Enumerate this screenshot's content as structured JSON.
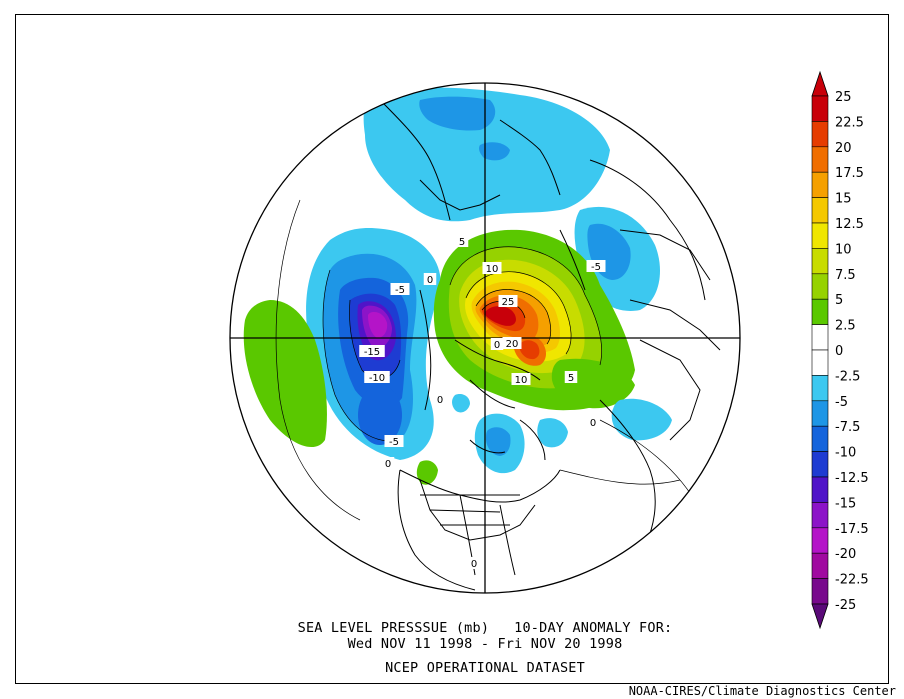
{
  "map": {
    "title_line1": "SEA LEVEL PRESSSUE (mb)   10-DAY ANOMALY FOR:",
    "title_line2": "Wed NOV 11 1998 - Fri NOV 20 1998",
    "title_line3": "NCEP OPERATIONAL DATASET",
    "credit": "NOAA-CIRES/Climate Diagnostics Center",
    "projection": "north polar stereographic",
    "contour_labels": [
      "5",
      "10",
      "25",
      "-5",
      "0",
      "-15",
      "20",
      "-10",
      "10",
      "5",
      "-5",
      "-5",
      "0",
      "0",
      "0",
      "0",
      "0"
    ]
  },
  "colorbar": {
    "levels": [
      "25",
      "22.5",
      "20",
      "17.5",
      "15",
      "12.5",
      "10",
      "7.5",
      "5",
      "2.5",
      "0",
      "-2.5",
      "-5",
      "-7.5",
      "-10",
      "-12.5",
      "-15",
      "-17.5",
      "-20",
      "-22.5",
      "-25"
    ],
    "colors": [
      "#c8000a",
      "#e63c00",
      "#f06e00",
      "#f5a000",
      "#f5c800",
      "#f0e600",
      "#c8dc00",
      "#96d200",
      "#5ac800",
      "#ffffff",
      "#ffffff",
      "#3cc8f0",
      "#1e96e6",
      "#1464dc",
      "#1e3cd2",
      "#5014c8",
      "#8c14c8",
      "#b414c8",
      "#a00aa0",
      "#780a8c"
    ],
    "top_arrow_color": "#c8000a",
    "bottom_arrow_color": "#5a0a78"
  }
}
